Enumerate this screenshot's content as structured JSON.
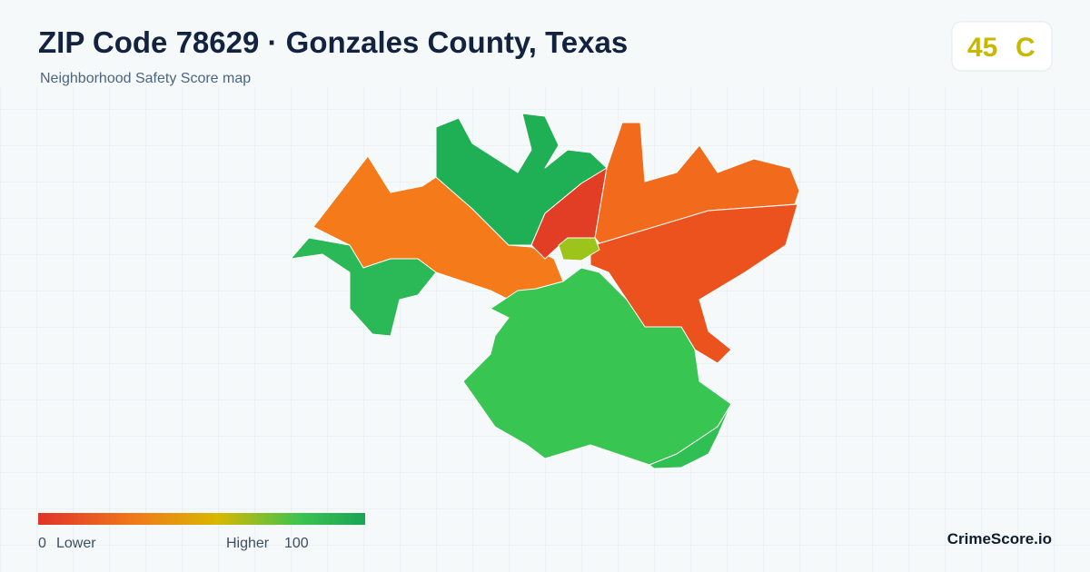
{
  "header": {
    "title": "ZIP Code 78629 · Gonzales County, Texas",
    "subtitle": "Neighborhood Safety Score map"
  },
  "score": {
    "value": "45",
    "grade": "C"
  },
  "legend": {
    "min": "0",
    "min_label": "Lower",
    "max_label": "Higher",
    "max": "100"
  },
  "brand": "CrimeScore.io"
}
